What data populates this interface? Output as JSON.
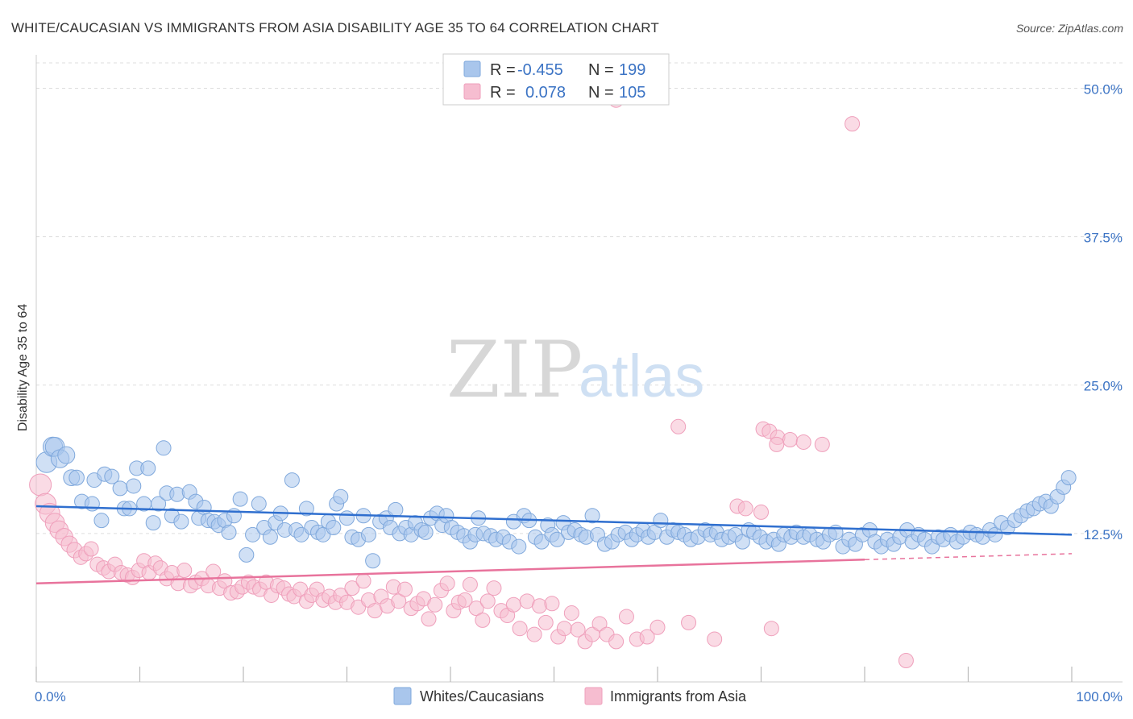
{
  "title": "WHITE/CAUCASIAN VS IMMIGRANTS FROM ASIA DISABILITY AGE 35 TO 64 CORRELATION CHART",
  "source": "Source: ZipAtlas.com",
  "watermark": {
    "part1": "ZIP",
    "part2": "atlas"
  },
  "legend_top": {
    "rows": [
      {
        "r_label": "R =",
        "r_value": "-0.455",
        "n_label": "N =",
        "n_value": "199"
      },
      {
        "r_label": "R =",
        "r_value": "0.078",
        "n_label": "N =",
        "n_value": "105"
      }
    ]
  },
  "colors": {
    "blue_fill": "#a9c6ec",
    "blue_stroke": "#7fa8dc",
    "blue_line": "#2f6fcf",
    "pink_fill": "#f6bdd0",
    "pink_stroke": "#ef9fbb",
    "pink_line": "#e8739c",
    "tick_text": "#3b73c4"
  },
  "chart_data": {
    "type": "scatter",
    "title": "WHITE/CAUCASIAN VS IMMIGRANTS FROM ASIA DISABILITY AGE 35 TO 64 CORRELATION CHART",
    "xlabel": "",
    "ylabel": "Disability Age 35 to 64",
    "xlim": [
      0,
      100
    ],
    "ylim": [
      0,
      52
    ],
    "x_tick_labels": [
      "0.0%",
      "100.0%"
    ],
    "y_ticks": [
      12.5,
      25.0,
      37.5,
      50.0
    ],
    "y_tick_labels": [
      "12.5%",
      "25.0%",
      "37.5%",
      "50.0%"
    ],
    "grid": true,
    "legend_position": "bottom",
    "series": [
      {
        "name": "Whites/Caucasians",
        "color": "#a9c6ec",
        "r": "-0.455",
        "n": "199",
        "trend": {
          "x": [
            0,
            100
          ],
          "y": [
            14.8,
            12.4
          ]
        },
        "points": [
          [
            1.0,
            18.5
          ],
          [
            1.6,
            19.8
          ],
          [
            1.8,
            19.8
          ],
          [
            2.3,
            18.8
          ],
          [
            2.9,
            19.1
          ],
          [
            3.4,
            17.2
          ],
          [
            3.9,
            17.2
          ],
          [
            4.4,
            15.2
          ],
          [
            5.4,
            15.0
          ],
          [
            5.6,
            17.0
          ],
          [
            6.3,
            13.6
          ],
          [
            6.6,
            17.5
          ],
          [
            7.3,
            17.3
          ],
          [
            8.1,
            16.3
          ],
          [
            8.5,
            14.6
          ],
          [
            9.0,
            14.6
          ],
          [
            9.4,
            16.5
          ],
          [
            9.7,
            18.0
          ],
          [
            10.4,
            15.0
          ],
          [
            10.8,
            18.0
          ],
          [
            11.3,
            13.4
          ],
          [
            11.8,
            15.0
          ],
          [
            12.3,
            19.7
          ],
          [
            12.6,
            15.9
          ],
          [
            13.1,
            14.0
          ],
          [
            13.6,
            15.8
          ],
          [
            14.0,
            13.5
          ],
          [
            14.8,
            16.0
          ],
          [
            15.4,
            15.2
          ],
          [
            15.7,
            13.8
          ],
          [
            16.2,
            14.7
          ],
          [
            16.6,
            13.6
          ],
          [
            17.2,
            13.5
          ],
          [
            17.6,
            13.2
          ],
          [
            18.2,
            13.6
          ],
          [
            18.6,
            12.6
          ],
          [
            19.1,
            14.0
          ],
          [
            19.7,
            15.4
          ],
          [
            20.3,
            10.7
          ],
          [
            20.9,
            12.4
          ],
          [
            21.5,
            15.0
          ],
          [
            22.0,
            13.0
          ],
          [
            22.6,
            12.2
          ],
          [
            23.1,
            13.4
          ],
          [
            23.6,
            14.2
          ],
          [
            24.0,
            12.8
          ],
          [
            24.7,
            17.0
          ],
          [
            25.1,
            12.8
          ],
          [
            25.6,
            12.4
          ],
          [
            26.1,
            14.6
          ],
          [
            26.6,
            13.0
          ],
          [
            27.2,
            12.6
          ],
          [
            27.7,
            12.4
          ],
          [
            28.2,
            13.5
          ],
          [
            28.7,
            13.0
          ],
          [
            29.0,
            15.0
          ],
          [
            29.4,
            15.6
          ],
          [
            30.0,
            13.8
          ],
          [
            30.5,
            12.2
          ],
          [
            31.1,
            12.0
          ],
          [
            31.6,
            14.0
          ],
          [
            32.1,
            12.4
          ],
          [
            32.5,
            10.2
          ],
          [
            33.2,
            13.5
          ],
          [
            33.8,
            13.8
          ],
          [
            34.2,
            13.0
          ],
          [
            34.7,
            14.5
          ],
          [
            35.1,
            12.5
          ],
          [
            35.7,
            13.0
          ],
          [
            36.2,
            12.4
          ],
          [
            36.6,
            13.4
          ],
          [
            37.2,
            12.8
          ],
          [
            37.6,
            12.6
          ],
          [
            38.1,
            13.8
          ],
          [
            38.7,
            14.2
          ],
          [
            39.2,
            13.2
          ],
          [
            39.6,
            14.0
          ],
          [
            40.1,
            13.0
          ],
          [
            40.7,
            12.6
          ],
          [
            41.3,
            12.3
          ],
          [
            41.9,
            11.8
          ],
          [
            42.4,
            12.4
          ],
          [
            42.7,
            13.8
          ],
          [
            43.2,
            12.5
          ],
          [
            43.9,
            12.3
          ],
          [
            44.4,
            12.0
          ],
          [
            45.1,
            12.2
          ],
          [
            45.7,
            11.8
          ],
          [
            46.1,
            13.5
          ],
          [
            46.6,
            11.4
          ],
          [
            47.1,
            14.0
          ],
          [
            47.6,
            13.6
          ],
          [
            48.2,
            12.2
          ],
          [
            48.8,
            11.8
          ],
          [
            49.4,
            13.2
          ],
          [
            49.8,
            12.4
          ],
          [
            50.3,
            12.0
          ],
          [
            50.9,
            13.4
          ],
          [
            51.4,
            12.6
          ],
          [
            52.0,
            12.8
          ],
          [
            52.6,
            12.4
          ],
          [
            53.1,
            12.2
          ],
          [
            53.7,
            14.0
          ],
          [
            54.2,
            12.4
          ],
          [
            54.9,
            11.6
          ],
          [
            55.6,
            11.8
          ],
          [
            56.2,
            12.4
          ],
          [
            56.9,
            12.6
          ],
          [
            57.5,
            12.0
          ],
          [
            58.0,
            12.4
          ],
          [
            58.6,
            12.8
          ],
          [
            59.1,
            12.2
          ],
          [
            59.7,
            12.6
          ],
          [
            60.3,
            13.6
          ],
          [
            60.9,
            12.2
          ],
          [
            61.5,
            12.8
          ],
          [
            62.0,
            12.6
          ],
          [
            62.6,
            12.4
          ],
          [
            63.2,
            12.0
          ],
          [
            63.9,
            12.2
          ],
          [
            64.6,
            12.8
          ],
          [
            65.1,
            12.4
          ],
          [
            65.7,
            12.6
          ],
          [
            66.2,
            12.0
          ],
          [
            66.9,
            12.2
          ],
          [
            67.5,
            12.4
          ],
          [
            68.2,
            11.8
          ],
          [
            68.8,
            12.8
          ],
          [
            69.3,
            12.6
          ],
          [
            69.9,
            12.2
          ],
          [
            70.5,
            11.8
          ],
          [
            71.2,
            12.0
          ],
          [
            71.7,
            11.6
          ],
          [
            72.2,
            12.4
          ],
          [
            72.9,
            12.2
          ],
          [
            73.4,
            12.6
          ],
          [
            74.1,
            12.2
          ],
          [
            74.7,
            12.4
          ],
          [
            75.4,
            12.0
          ],
          [
            76.0,
            11.8
          ],
          [
            76.6,
            12.4
          ],
          [
            77.2,
            12.6
          ],
          [
            77.9,
            11.4
          ],
          [
            78.5,
            12.0
          ],
          [
            79.1,
            11.6
          ],
          [
            79.8,
            12.4
          ],
          [
            80.5,
            12.8
          ],
          [
            81.0,
            11.8
          ],
          [
            81.6,
            11.4
          ],
          [
            82.2,
            12.0
          ],
          [
            82.8,
            11.6
          ],
          [
            83.4,
            12.2
          ],
          [
            84.1,
            12.8
          ],
          [
            84.6,
            11.8
          ],
          [
            85.2,
            12.4
          ],
          [
            85.8,
            12.0
          ],
          [
            86.5,
            11.4
          ],
          [
            87.1,
            12.2
          ],
          [
            87.6,
            12.0
          ],
          [
            88.3,
            12.4
          ],
          [
            88.9,
            11.8
          ],
          [
            89.5,
            12.2
          ],
          [
            90.2,
            12.6
          ],
          [
            90.8,
            12.4
          ],
          [
            91.4,
            12.2
          ],
          [
            92.1,
            12.8
          ],
          [
            92.6,
            12.4
          ],
          [
            93.2,
            13.4
          ],
          [
            93.8,
            13.0
          ],
          [
            94.5,
            13.6
          ],
          [
            95.1,
            14.0
          ],
          [
            95.7,
            14.4
          ],
          [
            96.3,
            14.6
          ],
          [
            96.9,
            15.0
          ],
          [
            97.5,
            15.2
          ],
          [
            98.0,
            14.8
          ],
          [
            98.6,
            15.6
          ],
          [
            99.2,
            16.4
          ],
          [
            99.7,
            17.2
          ]
        ]
      },
      {
        "name": "Immigrants from Asia",
        "color": "#f6bdd0",
        "r": "0.078",
        "n": "105",
        "trend": {
          "x": [
            0,
            80
          ],
          "y": [
            8.3,
            10.3
          ]
        },
        "trend_extension": {
          "x": [
            80,
            100
          ],
          "y": [
            10.3,
            10.8
          ]
        },
        "points": [
          [
            0.4,
            16.6
          ],
          [
            0.9,
            15.0
          ],
          [
            1.3,
            14.2
          ],
          [
            1.8,
            13.4
          ],
          [
            2.2,
            12.8
          ],
          [
            2.7,
            12.2
          ],
          [
            3.2,
            11.6
          ],
          [
            3.7,
            11.1
          ],
          [
            4.3,
            10.5
          ],
          [
            4.8,
            10.8
          ],
          [
            5.3,
            11.2
          ],
          [
            5.9,
            9.9
          ],
          [
            6.5,
            9.6
          ],
          [
            7.0,
            9.3
          ],
          [
            7.6,
            9.9
          ],
          [
            8.2,
            9.2
          ],
          [
            8.8,
            9.0
          ],
          [
            9.3,
            8.8
          ],
          [
            9.9,
            9.4
          ],
          [
            10.4,
            10.2
          ],
          [
            10.9,
            9.2
          ],
          [
            11.5,
            10.0
          ],
          [
            12.0,
            9.6
          ],
          [
            12.6,
            8.7
          ],
          [
            13.1,
            9.2
          ],
          [
            13.7,
            8.3
          ],
          [
            14.3,
            9.4
          ],
          [
            14.9,
            8.1
          ],
          [
            15.4,
            8.4
          ],
          [
            16.0,
            8.7
          ],
          [
            16.6,
            8.1
          ],
          [
            17.1,
            9.3
          ],
          [
            17.7,
            7.9
          ],
          [
            18.2,
            8.5
          ],
          [
            18.8,
            7.5
          ],
          [
            19.4,
            7.6
          ],
          [
            19.9,
            8.0
          ],
          [
            20.5,
            8.4
          ],
          [
            21.0,
            8.0
          ],
          [
            21.6,
            7.8
          ],
          [
            22.2,
            8.4
          ],
          [
            22.7,
            7.3
          ],
          [
            23.3,
            8.1
          ],
          [
            23.9,
            7.9
          ],
          [
            24.4,
            7.4
          ],
          [
            24.9,
            7.2
          ],
          [
            25.5,
            7.8
          ],
          [
            26.1,
            6.8
          ],
          [
            26.6,
            7.3
          ],
          [
            27.1,
            7.8
          ],
          [
            27.7,
            6.9
          ],
          [
            28.3,
            7.2
          ],
          [
            28.9,
            6.7
          ],
          [
            29.4,
            7.3
          ],
          [
            30.0,
            6.7
          ],
          [
            30.5,
            7.9
          ],
          [
            31.1,
            6.3
          ],
          [
            31.6,
            8.5
          ],
          [
            32.1,
            6.9
          ],
          [
            32.7,
            6.0
          ],
          [
            33.3,
            7.2
          ],
          [
            33.9,
            6.4
          ],
          [
            34.5,
            8.0
          ],
          [
            35.0,
            6.8
          ],
          [
            35.6,
            7.8
          ],
          [
            36.2,
            6.2
          ],
          [
            36.8,
            6.6
          ],
          [
            37.4,
            7.0
          ],
          [
            37.9,
            5.3
          ],
          [
            38.5,
            6.5
          ],
          [
            39.1,
            7.7
          ],
          [
            39.7,
            8.3
          ],
          [
            40.3,
            6.0
          ],
          [
            40.8,
            6.7
          ],
          [
            41.4,
            6.9
          ],
          [
            41.9,
            8.2
          ],
          [
            42.5,
            6.2
          ],
          [
            43.1,
            5.2
          ],
          [
            43.6,
            6.8
          ],
          [
            44.2,
            7.9
          ],
          [
            44.9,
            6.0
          ],
          [
            45.5,
            5.6
          ],
          [
            46.1,
            6.5
          ],
          [
            46.7,
            4.5
          ],
          [
            47.4,
            6.8
          ],
          [
            48.1,
            4.0
          ],
          [
            48.6,
            6.4
          ],
          [
            49.2,
            5.0
          ],
          [
            49.8,
            6.6
          ],
          [
            50.4,
            3.8
          ],
          [
            51.0,
            4.5
          ],
          [
            51.7,
            5.8
          ],
          [
            52.3,
            4.4
          ],
          [
            53.0,
            3.4
          ],
          [
            53.7,
            4.0
          ],
          [
            54.4,
            4.9
          ],
          [
            55.1,
            4.0
          ],
          [
            56.0,
            3.4
          ],
          [
            57.0,
            5.5
          ],
          [
            58.0,
            3.6
          ],
          [
            59.0,
            3.8
          ],
          [
            60.0,
            4.6
          ],
          [
            63.0,
            5.0
          ],
          [
            65.5,
            3.6
          ],
          [
            71.0,
            4.5
          ],
          [
            67.7,
            14.8
          ],
          [
            68.5,
            14.6
          ],
          [
            70.0,
            14.3
          ],
          [
            84.0,
            1.8
          ],
          [
            62.0,
            21.5
          ],
          [
            70.2,
            21.3
          ],
          [
            70.8,
            21.1
          ],
          [
            71.6,
            20.6
          ],
          [
            72.8,
            20.4
          ],
          [
            74.1,
            20.2
          ],
          [
            56.0,
            49.0
          ],
          [
            78.8,
            47.0
          ],
          [
            71.5,
            20.0
          ],
          [
            75.9,
            20.0
          ]
        ]
      }
    ]
  },
  "legend_bottom": [
    {
      "label": "Whites/Caucasians",
      "swatch": "blue"
    },
    {
      "label": "Immigrants from Asia",
      "swatch": "pink"
    }
  ]
}
